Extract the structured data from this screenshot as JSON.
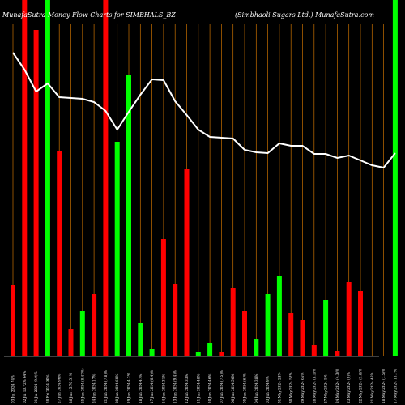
{
  "header": {
    "title_left": "MunafaSutra  Money Flow  Charts for SIMBHALS_BZ",
    "title_right": "(Simbhaoli   Sugars Ltd.) MunafaSutra.com"
  },
  "colors": {
    "background": "#000000",
    "buy": "#00ff00",
    "sell": "#ff0000",
    "line": "#ffffff",
    "gridline": "#c87000"
  },
  "chart_data": {
    "type": "bar",
    "title": "MunafaSutra  Money Flow  Charts for SIMBHALS_BZ",
    "subtitle": "(Simbhaoli   Sugars Ltd.) MunafaSutra.com",
    "grid": true,
    "legend": "none",
    "categories": [
      "03 Jul 2024 74%",
      "02 Jul 10.72% 64%",
      "01 Jul 2024 (9.9)%",
      "28 Fri 2024 90%",
      "27 Jun 2024 96%",
      "26 Jun 15.70 51%",
      "25 Jun 2024 (8.47%)",
      "24 Jun 2024 17%",
      "21 Jun 2024 (7.8)%",
      "20 Jun 2024 60%",
      "19 Jun 2024 4.2%",
      "18 Jun 2024 47%",
      "17 Jun 2024 (6.4)%",
      "14 Jun 2024 31%",
      "13 Jun 2024 (9.4)%",
      "12 Jun 2024 33%",
      "11 Jun 2024 48%",
      "10 Jun 2024 46%",
      "07 Jun 2024 (7.5)%",
      "06 Jun 2024 56%",
      "05 Jun 2024 (6)%",
      "04 Jun 2024 38%",
      "03 Jun 2024 9%",
      "31 May 2024 24%",
      "30 May 2024 52%",
      "29 May 2024 66%",
      "28 May 2024 (8.1)%",
      "27 May 2024 5%",
      "24 May 2024 (4.3)%",
      "23 May 2024 (9)%",
      "22 May 2024 (1.6)%",
      "21 May 2024 46%",
      "18 May 2024 (7.5)%",
      "17 May 2024 18.7%"
    ],
    "bars": [
      {
        "value": 88,
        "flow": "sell"
      },
      {
        "value": 440,
        "flow": "sell"
      },
      {
        "value": 403,
        "flow": "sell"
      },
      {
        "value": 440,
        "flow": "buy"
      },
      {
        "value": 254,
        "flow": "sell"
      },
      {
        "value": 34,
        "flow": "sell"
      },
      {
        "value": 56,
        "flow": "buy"
      },
      {
        "value": 77,
        "flow": "sell"
      },
      {
        "value": 440,
        "flow": "sell"
      },
      {
        "value": 265,
        "flow": "buy"
      },
      {
        "value": 347,
        "flow": "buy"
      },
      {
        "value": 41,
        "flow": "buy"
      },
      {
        "value": 9,
        "flow": "buy"
      },
      {
        "value": 145,
        "flow": "sell"
      },
      {
        "value": 89,
        "flow": "sell"
      },
      {
        "value": 231,
        "flow": "sell"
      },
      {
        "value": 5,
        "flow": "buy"
      },
      {
        "value": 17,
        "flow": "buy"
      },
      {
        "value": 5,
        "flow": "sell"
      },
      {
        "value": 85,
        "flow": "sell"
      },
      {
        "value": 56,
        "flow": "sell"
      },
      {
        "value": 21,
        "flow": "buy"
      },
      {
        "value": 77,
        "flow": "buy"
      },
      {
        "value": 99,
        "flow": "buy"
      },
      {
        "value": 53,
        "flow": "sell"
      },
      {
        "value": 45,
        "flow": "sell"
      },
      {
        "value": 14,
        "flow": "sell"
      },
      {
        "value": 70,
        "flow": "buy"
      },
      {
        "value": 7,
        "flow": "sell"
      },
      {
        "value": 92,
        "flow": "sell"
      },
      {
        "value": 81,
        "flow": "sell"
      },
      {
        "value": 0,
        "flow": "none"
      },
      {
        "value": 0,
        "flow": "none"
      },
      {
        "value": 440,
        "flow": "buy"
      }
    ],
    "price_line": [
      375,
      354,
      327,
      337,
      320,
      319,
      318,
      314,
      303,
      280,
      302,
      323,
      342,
      341,
      315,
      298,
      280,
      271,
      270,
      269,
      255,
      252,
      251,
      263,
      260,
      260,
      250,
      250,
      245,
      248,
      242,
      236,
      233,
      251
    ],
    "ylim": [
      0,
      440
    ]
  }
}
